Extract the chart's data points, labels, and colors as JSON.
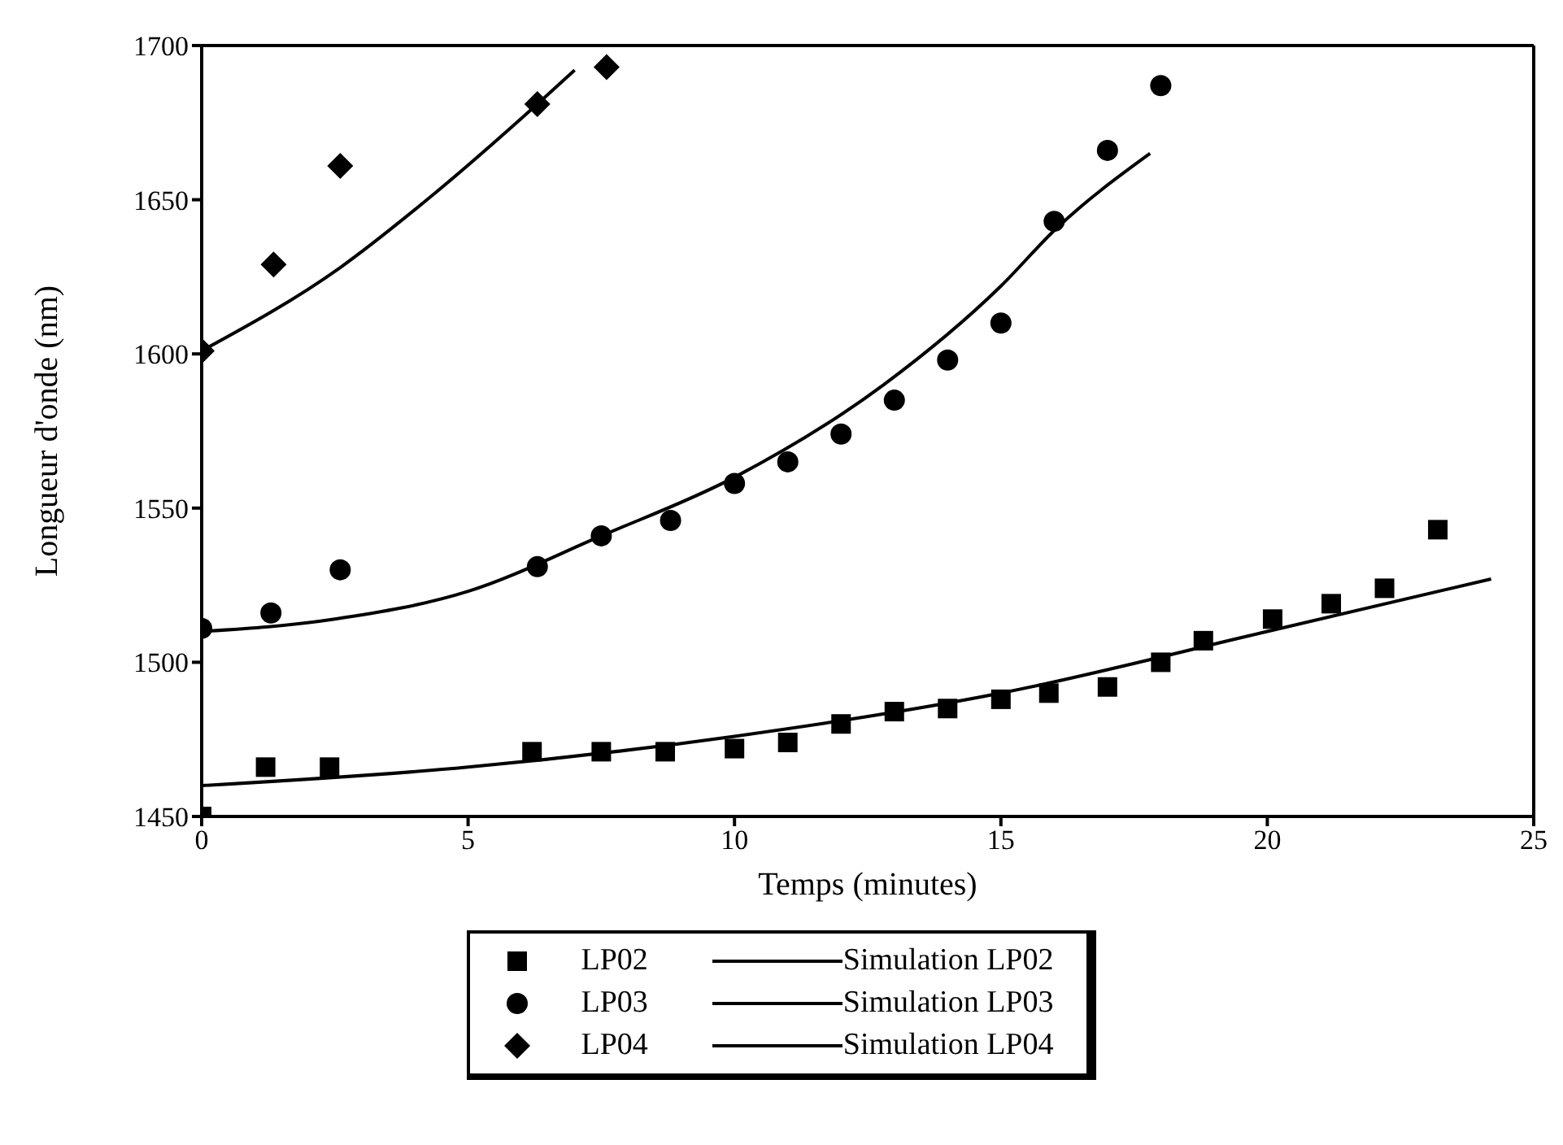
{
  "chart_data": {
    "type": "scatter",
    "xlabel": "Temps (minutes)",
    "ylabel": "Longueur d'onde (nm)",
    "xlim": [
      0,
      25
    ],
    "xticks": [
      0,
      5,
      10,
      15,
      20,
      25
    ],
    "ylim": [
      1450,
      1700
    ],
    "yticks": [
      1450,
      1500,
      1550,
      1600,
      1650,
      1700
    ],
    "legend": "bottom",
    "series": [
      {
        "name": "LP02",
        "marker": "square",
        "color": "#000000",
        "x": [
          0,
          1.2,
          2.4,
          6.2,
          7.5,
          8.7,
          10,
          11,
          12,
          13,
          14,
          15,
          15.9,
          17,
          18,
          18.8,
          20.1,
          21.2,
          22.2,
          23.2
        ],
        "values": [
          1450,
          1466,
          1466,
          1471,
          1471,
          1471,
          1472,
          1474,
          1480,
          1484,
          1485,
          1488,
          1490,
          1492,
          1500,
          1507,
          1514,
          1519,
          1524,
          1543
        ]
      },
      {
        "name": "Simulation LP02",
        "type": "line",
        "line_style": "solid",
        "color": "#000000",
        "x": [
          0,
          5,
          10,
          15,
          20,
          24.2
        ],
        "values": [
          1460,
          1466,
          1476,
          1490,
          1510,
          1527
        ]
      },
      {
        "name": "LP03",
        "marker": "circle",
        "color": "#000000",
        "x": [
          0,
          1.3,
          2.6,
          6.3,
          7.5,
          8.8,
          10,
          11,
          12,
          13,
          14,
          15,
          16,
          17,
          18
        ],
        "values": [
          1511,
          1516,
          1530,
          1531,
          1541,
          1546,
          1558,
          1565,
          1574,
          1585,
          1598,
          1610,
          1643,
          1666,
          1687
        ]
      },
      {
        "name": "Simulation LP03",
        "type": "line",
        "line_style": "solid",
        "color": "#000000",
        "x": [
          0,
          2.5,
          5,
          7.5,
          10,
          12.8,
          15,
          16,
          17.8
        ],
        "values": [
          1510,
          1514,
          1523,
          1541,
          1560,
          1590,
          1622,
          1640,
          1665
        ]
      },
      {
        "name": "LP04",
        "marker": "diamond",
        "color": "#000000",
        "x": [
          0,
          1.35,
          2.6,
          6.3,
          7.6
        ],
        "values": [
          1601,
          1629,
          1661,
          1681,
          1693
        ]
      },
      {
        "name": "Simulation LP04",
        "type": "line",
        "line_style": "solid",
        "color": "#000000",
        "x": [
          0,
          2.6,
          4.3,
          6.3,
          7.0
        ],
        "values": [
          1601,
          1628,
          1651,
          1681,
          1692
        ]
      }
    ]
  }
}
